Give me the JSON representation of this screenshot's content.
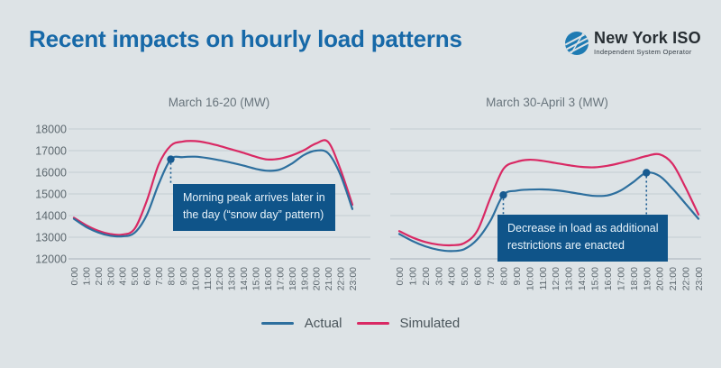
{
  "header": {
    "title": "Recent impacts on hourly load patterns",
    "logo": {
      "name": "New York ISO",
      "subtitle": "Independent System Operator"
    }
  },
  "colors": {
    "background": "#dde3e6",
    "title": "#1769a8",
    "grid": "#c3ccd2",
    "grid_bottom": "#a7b2ba",
    "axis_text": "#5d686f",
    "actual": "#2d6f9e",
    "simulated": "#d92964",
    "marker": "#175a90",
    "annotation_bg": "#0f5489",
    "annotation_text": "#e8f3fa"
  },
  "legend": [
    {
      "label": "Actual",
      "color": "#2d6f9e"
    },
    {
      "label": "Simulated",
      "color": "#d92964"
    }
  ],
  "chart_data": [
    {
      "type": "line",
      "title": "March 16-20 (MW)",
      "ylim": [
        12000,
        18000
      ],
      "y_ticks": [
        "18000",
        "17000",
        "16000",
        "15000",
        "14000",
        "13000",
        "12000"
      ],
      "grid": true,
      "x": [
        "0:00",
        "1:00",
        "2:00",
        "3:00",
        "4:00",
        "5:00",
        "6:00",
        "7:00",
        "8:00",
        "9:00",
        "10:00",
        "11:00",
        "12:00",
        "13:00",
        "14:00",
        "15:00",
        "16:00",
        "17:00",
        "18:00",
        "19:00",
        "20:00",
        "21:00",
        "22:00",
        "23:00"
      ],
      "series": [
        {
          "name": "Actual",
          "color": "#2d6f9e",
          "values": [
            13850,
            13480,
            13220,
            13070,
            13040,
            13200,
            14000,
            15450,
            16600,
            16700,
            16720,
            16660,
            16560,
            16440,
            16310,
            16160,
            16070,
            16120,
            16400,
            16800,
            17000,
            16880,
            15900,
            14300
          ]
        },
        {
          "name": "Simulated",
          "color": "#d92964",
          "values": [
            13900,
            13560,
            13300,
            13150,
            13120,
            13380,
            14650,
            16350,
            17230,
            17420,
            17440,
            17360,
            17220,
            17060,
            16900,
            16720,
            16590,
            16630,
            16780,
            17020,
            17330,
            17400,
            16150,
            14500
          ]
        }
      ],
      "markers": [
        {
          "series": 0,
          "hour": 8
        }
      ],
      "annotation": {
        "text": "Morning peak arrives later in\nthe day (“snow day” pattern)"
      }
    },
    {
      "type": "line",
      "title": "March 30-April 3 (MW)",
      "ylim": [
        12000,
        18000
      ],
      "y_ticks": [],
      "grid": true,
      "x": [
        "0:00",
        "1:00",
        "2:00",
        "3:00",
        "4:00",
        "5:00",
        "6:00",
        "7:00",
        "8:00",
        "9:00",
        "10:00",
        "11:00",
        "12:00",
        "13:00",
        "14:00",
        "15:00",
        "16:00",
        "17:00",
        "18:00",
        "19:00",
        "20:00",
        "21:00",
        "22:00",
        "23:00"
      ],
      "series": [
        {
          "name": "Actual",
          "color": "#2d6f9e",
          "values": [
            13150,
            12830,
            12580,
            12420,
            12360,
            12450,
            12900,
            13750,
            14950,
            15150,
            15200,
            15210,
            15170,
            15090,
            14990,
            14910,
            14930,
            15150,
            15550,
            15980,
            15830,
            15250,
            14550,
            13850
          ]
        },
        {
          "name": "Simulated",
          "color": "#d92964",
          "values": [
            13280,
            12990,
            12780,
            12660,
            12630,
            12730,
            13300,
            14800,
            16150,
            16480,
            16580,
            16530,
            16430,
            16330,
            16250,
            16230,
            16300,
            16430,
            16580,
            16750,
            16830,
            16400,
            15300,
            14050
          ]
        }
      ],
      "markers": [
        {
          "series": 0,
          "hour": 8
        },
        {
          "series": 0,
          "hour": 19
        }
      ],
      "annotation": {
        "text": "Decrease in load as additional\nrestrictions are enacted"
      }
    }
  ]
}
